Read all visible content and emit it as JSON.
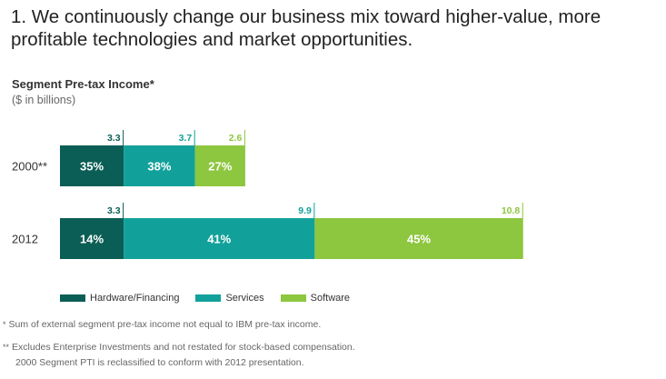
{
  "headline": "1. We continuously change our business mix toward higher-value, more profitable technologies and market opportunities.",
  "chart_data": {
    "type": "bar",
    "orientation": "horizontal-stacked",
    "title": "Segment Pre-tax Income*",
    "subtitle": "($ in billions)",
    "categories": [
      "2000**",
      "2012"
    ],
    "series": [
      {
        "name": "Hardware/Financing",
        "color": "#0b5e55",
        "values": [
          3.3,
          3.3
        ],
        "percent_labels": [
          "35%",
          "14%"
        ],
        "value_labels": [
          "3.3",
          "3.3"
        ]
      },
      {
        "name": "Services",
        "color": "#12a19a",
        "values": [
          3.7,
          9.9
        ],
        "percent_labels": [
          "38%",
          "41%"
        ],
        "value_labels": [
          "3.7",
          "9.9"
        ]
      },
      {
        "name": "Software",
        "color": "#8dc63f",
        "values": [
          2.6,
          10.8
        ],
        "percent_labels": [
          "27%",
          "45%"
        ],
        "value_labels": [
          "2.6",
          "10.8"
        ]
      }
    ],
    "legend_position": "bottom",
    "grid": false
  },
  "footnotes": {
    "note1_mark": "*",
    "note1": "Sum of external segment pre-tax income not equal to IBM pre-tax income.",
    "note2_mark": "**",
    "note2_line1": "Excludes Enterprise Investments and not restated for stock-based compensation.",
    "note2_line2": "2000 Segment PTI is reclassified to conform with 2012 presentation."
  }
}
